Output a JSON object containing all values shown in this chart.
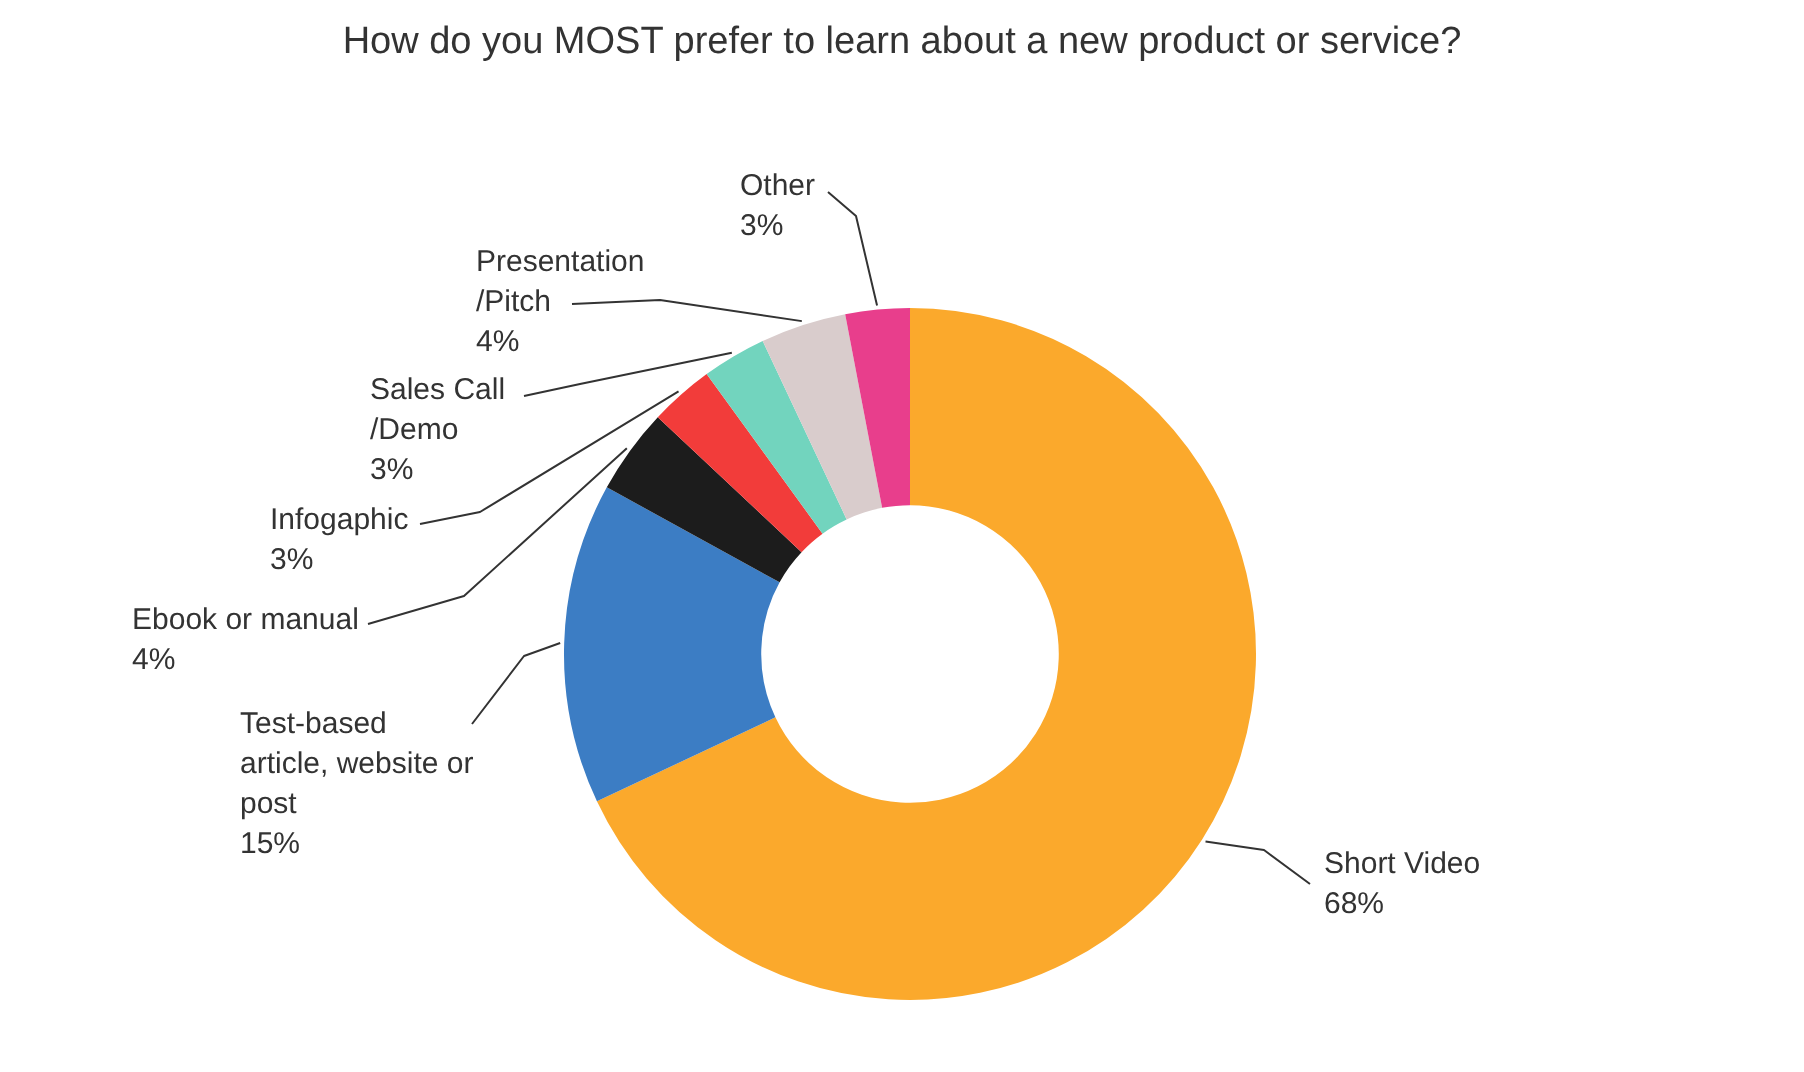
{
  "chart_data": {
    "type": "donut",
    "title": "How do you MOST prefer to learn about a new product or service?",
    "categories": [
      "Short Video",
      "Test-based article, website or post",
      "Ebook or manual",
      "Infogaphic",
      "Sales Call /Demo",
      "Presentation /Pitch",
      "Other"
    ],
    "values": [
      68,
      15,
      4,
      3,
      3,
      4,
      3
    ],
    "value_labels": [
      "68%",
      "15%",
      "4%",
      "3%",
      "3%",
      "4%",
      "3%"
    ],
    "colors": [
      "#fba92c",
      "#3c7dc4",
      "#1c1c1c",
      "#f23c3a",
      "#72d4be",
      "#d9cccc",
      "#e83e8c"
    ],
    "legend": false
  }
}
